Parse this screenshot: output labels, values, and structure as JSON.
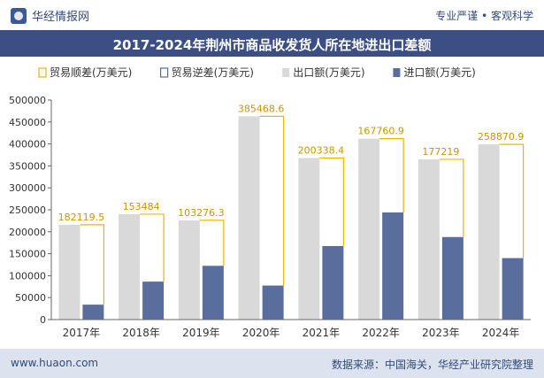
{
  "header": {
    "brand": "华经情报网",
    "slogan": "专业严谨 • 客观科学"
  },
  "footer": {
    "url": "www.huaon.com",
    "source": "数据来源：中国海关，华经产业研究院整理"
  },
  "colors": {
    "export": "#d9d9d9",
    "import": "#5a6e9e",
    "surplus_line": "#f0b400",
    "deficit_line": "#4a6fb0",
    "title_bg": "#3c4f84"
  },
  "chart_data": {
    "type": "bar",
    "title": "2017-2024年荆州市商品收发货人所在地进出口差额",
    "categories": [
      "2017年",
      "2018年",
      "2019年",
      "2020年",
      "2021年",
      "2022年",
      "2023年",
      "2024年"
    ],
    "series": [
      {
        "name": "贸易顺差(万美元)",
        "values": [
          182119.5,
          153484,
          103276.3,
          385468.6,
          200338.4,
          167760.9,
          177219,
          258870.9
        ],
        "labels": [
          "182119.5",
          "153484",
          "103276.3",
          "385468.6",
          "200338.4",
          "167760.9",
          "177219",
          "258870.9"
        ]
      },
      {
        "name": "贸易逆差(万美元)",
        "values": [
          0,
          0,
          0,
          0,
          0,
          0,
          0,
          0
        ]
      },
      {
        "name": "出口额(万美元)",
        "values": [
          216000,
          240000,
          226000,
          463000,
          368000,
          412000,
          365000,
          399000
        ]
      },
      {
        "name": "进口额(万美元)",
        "values": [
          34000,
          86500,
          122500,
          77500,
          167500,
          244000,
          188000,
          140000
        ]
      }
    ],
    "yticks": [
      "0",
      "50000",
      "100000",
      "150000",
      "200000",
      "250000",
      "300000",
      "350000",
      "400000",
      "450000",
      "500000"
    ],
    "ylim": [
      0,
      500000
    ],
    "legend_position": "top",
    "grid": false
  }
}
